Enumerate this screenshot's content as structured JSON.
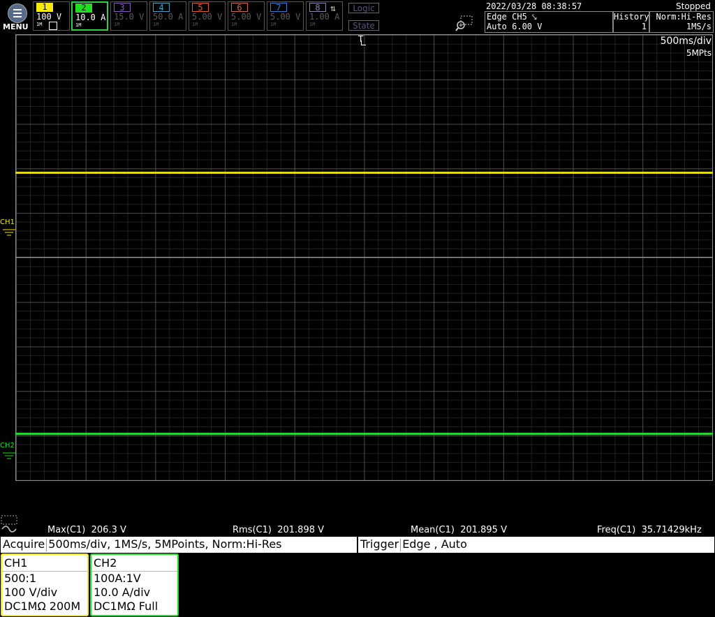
{
  "menu": {
    "label": "MENU"
  },
  "channels": [
    {
      "num": "1",
      "scale": "100 V",
      "sub": "1M",
      "color": "#f5e90f"
    },
    {
      "num": "2",
      "scale": "10.0 A",
      "sub": "1M",
      "color": "#1fe01f"
    },
    {
      "num": "3",
      "scale": "15.0 V",
      "sub": "1M",
      "color": "#8a5ab8"
    },
    {
      "num": "4",
      "scale": "50.0 A",
      "sub": "1M",
      "color": "#4aa0c8"
    },
    {
      "num": "5",
      "scale": "5.00 V",
      "sub": "1M",
      "color": "#d86030"
    },
    {
      "num": "6",
      "scale": "5.00 V",
      "sub": "1M",
      "color": "#c86a4a"
    },
    {
      "num": "7",
      "scale": "5.00 V",
      "sub": "1M",
      "color": "#3a7ac8"
    },
    {
      "num": "8",
      "scale": "1.00 A",
      "sub": "1M",
      "color": "#8a8ab0"
    }
  ],
  "logic_label": "Logic",
  "state_label": "State",
  "datetime": "2022/03/28 08:38:57",
  "run_state": "Stopped",
  "trigger_panel": {
    "line1": "Edge CH5 ⤥",
    "line2": "Auto 6.00 V"
  },
  "history_panel": {
    "label": "History",
    "value": "1"
  },
  "acq_panel": {
    "line1": "Norm:Hi-Res",
    "line2": "1MS/s"
  },
  "timebase": {
    "div": "500ms/div",
    "points": "5MPts"
  },
  "trigger_marker": "T",
  "traces": {
    "ch1_label": "CH1",
    "ch2_label": "CH2"
  },
  "measurements": [
    {
      "name": "Max(C1)",
      "value": "206.3 V"
    },
    {
      "name": "Rms(C1)",
      "value": "201.898 V"
    },
    {
      "name": "Mean(C1)",
      "value": "201.895 V"
    },
    {
      "name": "Freq(C1)",
      "value": "35.71429kHz"
    }
  ],
  "acquire": {
    "label": "Acquire",
    "value": "500ms/div, 1MS/s, 5MPoints, Norm:Hi-Res"
  },
  "trigger": {
    "label": "Trigger",
    "value": "Edge , Auto"
  },
  "ch_cards": [
    {
      "title": "CH1",
      "probe": "500:1",
      "scale": "100 V/div",
      "coupling": "DC1MΩ 200M",
      "color": "#f5e90f"
    },
    {
      "title": "CH2",
      "probe": "100A:1V",
      "scale": "10.0 A/div",
      "coupling": "DC1MΩ Full",
      "color": "#1fe01f"
    }
  ]
}
